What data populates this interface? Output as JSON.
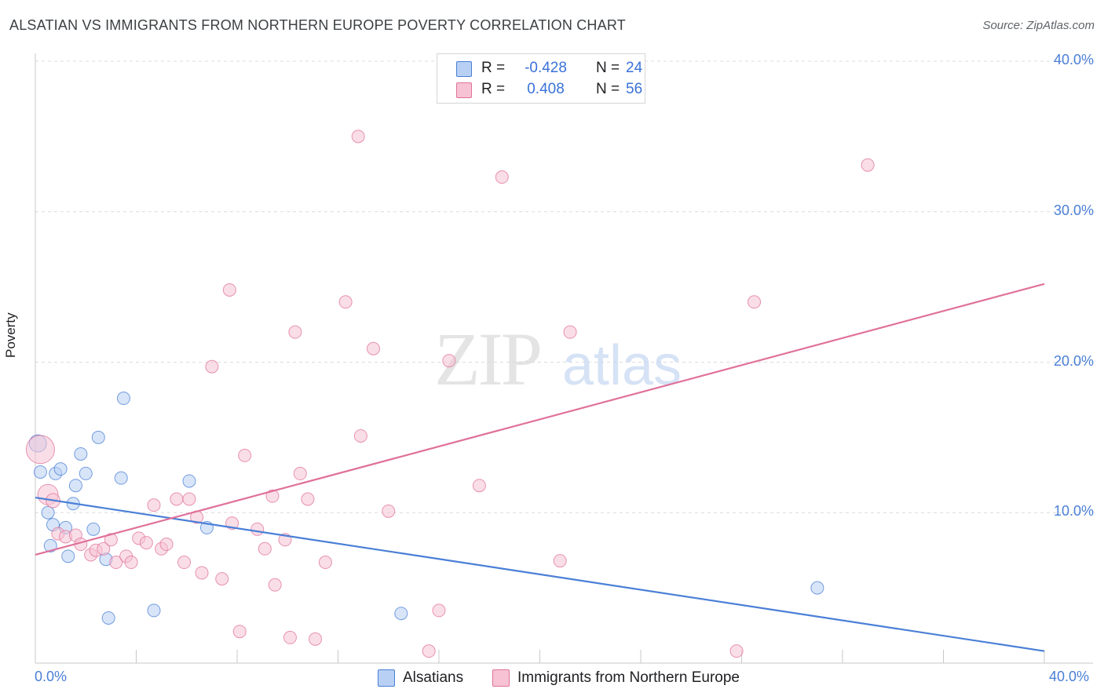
{
  "chart_data": {
    "type": "scatter",
    "title": "ALSATIAN VS IMMIGRANTS FROM NORTHERN EUROPE POVERTY CORRELATION CHART",
    "source": "Source: ZipAtlas.com",
    "ylabel": "Poverty",
    "xlabel": "",
    "xlim": [
      0,
      40
    ],
    "ylim": [
      0,
      40
    ],
    "y_ticks": [
      {
        "value": 10,
        "label": "10.0%"
      },
      {
        "value": 20,
        "label": "20.0%"
      },
      {
        "value": 30,
        "label": "30.0%"
      },
      {
        "value": 40,
        "label": "40.0%"
      }
    ],
    "x_tick_labels": {
      "min": "0.0%",
      "max": "40.0%"
    },
    "grid": true,
    "watermark": "ZIPatlas",
    "legend": [
      {
        "series": "Alsatians",
        "r_label": "R =",
        "r": "-0.428",
        "n_label": "N =",
        "n": "24"
      },
      {
        "series": "Immigrants from Northern Europe",
        "r_label": "R =",
        "r": "0.408",
        "n_label": "N =",
        "n": "56"
      }
    ],
    "series": [
      {
        "name": "Alsatians",
        "color": "#4a7fd6",
        "fill": "#b8d0f4",
        "trend": {
          "x0": 0,
          "y0": 11.0,
          "x1": 40,
          "y1": 0.8
        },
        "points": [
          [
            0.1,
            14.6,
            11
          ],
          [
            0.2,
            12.7,
            8
          ],
          [
            0.5,
            10.0,
            8
          ],
          [
            0.6,
            7.8,
            8
          ],
          [
            0.7,
            9.2,
            8
          ],
          [
            0.8,
            12.6,
            8
          ],
          [
            1.0,
            12.9,
            8
          ],
          [
            1.2,
            9.0,
            8
          ],
          [
            1.3,
            7.1,
            8
          ],
          [
            1.5,
            10.6,
            8
          ],
          [
            1.6,
            11.8,
            8
          ],
          [
            1.8,
            13.9,
            8
          ],
          [
            2.0,
            12.6,
            8
          ],
          [
            2.3,
            8.9,
            8
          ],
          [
            2.5,
            15.0,
            8
          ],
          [
            2.8,
            6.9,
            8
          ],
          [
            2.9,
            3.0,
            8
          ],
          [
            3.4,
            12.3,
            8
          ],
          [
            3.5,
            17.6,
            8
          ],
          [
            4.7,
            3.5,
            8
          ],
          [
            6.1,
            12.1,
            8
          ],
          [
            6.8,
            9.0,
            8
          ],
          [
            14.5,
            3.3,
            8
          ],
          [
            31.0,
            5.0,
            8
          ]
        ]
      },
      {
        "name": "Immigrants from Northern Europe",
        "color": "#e0719a",
        "fill": "#f6c2d4",
        "trend": {
          "x0": 0,
          "y0": 7.2,
          "x1": 40,
          "y1": 25.2
        },
        "points": [
          [
            0.2,
            14.2,
            18
          ],
          [
            0.5,
            11.2,
            13
          ],
          [
            0.7,
            10.8,
            9
          ],
          [
            0.9,
            8.6,
            8
          ],
          [
            1.2,
            8.4,
            8
          ],
          [
            1.6,
            8.5,
            8
          ],
          [
            1.8,
            7.9,
            8
          ],
          [
            2.2,
            7.2,
            8
          ],
          [
            2.4,
            7.5,
            8
          ],
          [
            2.7,
            7.6,
            8
          ],
          [
            3.0,
            8.2,
            8
          ],
          [
            3.2,
            6.7,
            8
          ],
          [
            3.6,
            7.1,
            8
          ],
          [
            3.8,
            6.7,
            8
          ],
          [
            4.1,
            8.3,
            8
          ],
          [
            4.4,
            8.0,
            8
          ],
          [
            4.7,
            10.5,
            8
          ],
          [
            5.0,
            7.6,
            8
          ],
          [
            5.2,
            7.9,
            8
          ],
          [
            5.6,
            10.9,
            8
          ],
          [
            5.9,
            6.7,
            8
          ],
          [
            6.1,
            10.9,
            8
          ],
          [
            6.4,
            9.7,
            8
          ],
          [
            6.6,
            6.0,
            8
          ],
          [
            7.0,
            19.7,
            8
          ],
          [
            7.4,
            5.6,
            8
          ],
          [
            7.7,
            24.8,
            8
          ],
          [
            7.8,
            9.3,
            8
          ],
          [
            8.1,
            2.1,
            8
          ],
          [
            8.3,
            13.8,
            8
          ],
          [
            8.8,
            8.9,
            8
          ],
          [
            9.1,
            7.6,
            8
          ],
          [
            9.4,
            11.1,
            8
          ],
          [
            9.5,
            5.2,
            8
          ],
          [
            9.9,
            8.2,
            8
          ],
          [
            10.1,
            1.7,
            8
          ],
          [
            10.3,
            22.0,
            8
          ],
          [
            10.5,
            12.6,
            8
          ],
          [
            10.8,
            10.9,
            8
          ],
          [
            11.1,
            1.6,
            8
          ],
          [
            11.5,
            6.7,
            8
          ],
          [
            12.3,
            24.0,
            8
          ],
          [
            12.8,
            35.0,
            8
          ],
          [
            12.9,
            15.1,
            8
          ],
          [
            13.4,
            20.9,
            8
          ],
          [
            14.0,
            10.1,
            8
          ],
          [
            15.6,
            0.8,
            8
          ],
          [
            16.0,
            3.5,
            8
          ],
          [
            16.4,
            20.1,
            8
          ],
          [
            17.6,
            11.8,
            8
          ],
          [
            18.5,
            32.3,
            8
          ],
          [
            20.8,
            6.8,
            8
          ],
          [
            21.2,
            22.0,
            8
          ],
          [
            27.8,
            0.8,
            8
          ],
          [
            28.5,
            24.0,
            8
          ],
          [
            33.0,
            33.1,
            8
          ]
        ]
      }
    ]
  }
}
